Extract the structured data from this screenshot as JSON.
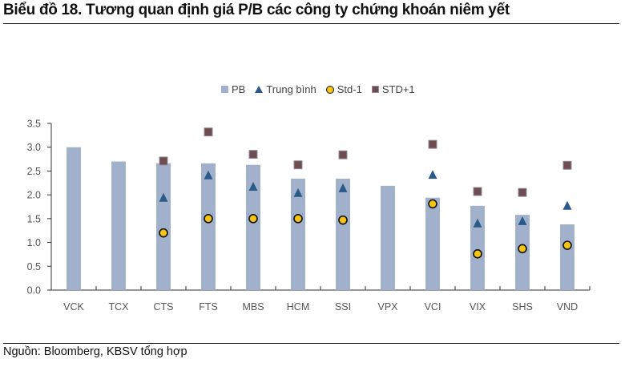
{
  "header": {
    "title": "Biểu đồ 18. Tương quan định giá P/B các công ty chứng khoán niêm yết"
  },
  "footer": {
    "source": "Nguồn: Bloomberg, KBSV tổng hợp"
  },
  "legend": {
    "items": [
      {
        "label": "PB",
        "marker": "bar-square",
        "color": "#a2b1cb"
      },
      {
        "label": "Trung bình",
        "marker": "triangle",
        "color": "#2a5a8a"
      },
      {
        "label": "Std-1",
        "marker": "circle",
        "color": "#f5c315"
      },
      {
        "label": "STD+1",
        "marker": "square",
        "color": "#6e4d52"
      }
    ]
  },
  "colors": {
    "bar": "#a2b1cb",
    "mean": "#2a5a8a",
    "std_minus": "#f5c315",
    "std_plus": "#6e4d52",
    "axis": "#333333"
  },
  "chart_data": {
    "type": "bar",
    "title": "Biểu đồ 18. Tương quan định giá P/B các công ty chứng khoán niêm yết",
    "xlabel": "",
    "ylabel": "",
    "ylim": [
      0,
      3.5
    ],
    "yticks": [
      "0.0",
      "0.5",
      "1.0",
      "1.5",
      "2.0",
      "2.5",
      "3.0",
      "3.5"
    ],
    "grid": false,
    "legend_position": "top",
    "categories": [
      "VCK",
      "TCX",
      "CTS",
      "FTS",
      "MBS",
      "HCM",
      "SSI",
      "VPX",
      "VCI",
      "VIX",
      "SHS",
      "VND"
    ],
    "series": [
      {
        "name": "PB",
        "type": "bar",
        "values": [
          3.0,
          2.7,
          2.66,
          2.66,
          2.63,
          2.34,
          2.34,
          2.19,
          1.94,
          1.77,
          1.58,
          1.38
        ]
      },
      {
        "name": "Trung bình",
        "type": "scatter",
        "marker": "triangle",
        "values": [
          null,
          null,
          1.94,
          2.41,
          2.17,
          2.04,
          2.14,
          null,
          2.42,
          1.4,
          1.45,
          1.77
        ]
      },
      {
        "name": "Std-1",
        "type": "scatter",
        "marker": "circle",
        "values": [
          null,
          null,
          1.2,
          1.5,
          1.5,
          1.5,
          1.47,
          null,
          1.81,
          0.76,
          0.87,
          0.94
        ]
      },
      {
        "name": "STD+1",
        "type": "scatter",
        "marker": "square",
        "values": [
          null,
          null,
          2.71,
          3.32,
          2.85,
          2.63,
          2.84,
          null,
          3.06,
          2.07,
          2.05,
          2.62
        ]
      }
    ],
    "source": "Nguồn: Bloomberg, KBSV tổng hợp"
  }
}
